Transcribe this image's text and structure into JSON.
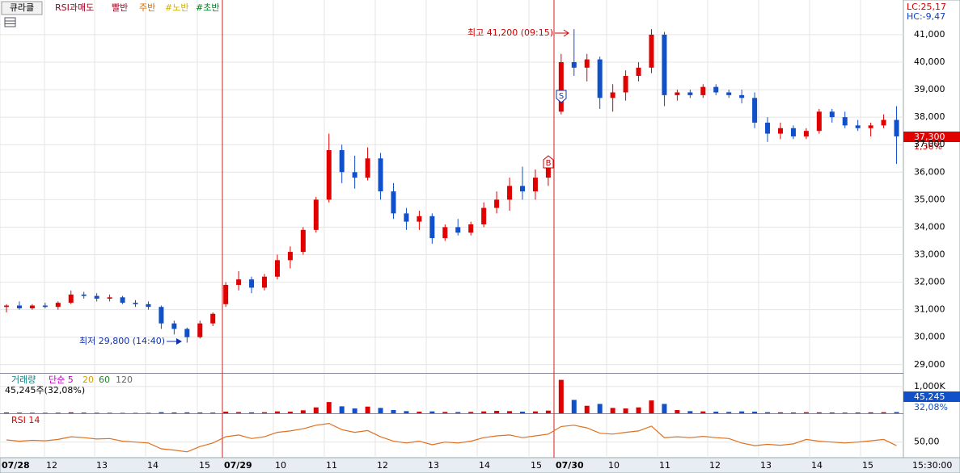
{
  "chart_data": {
    "type": "candlestick",
    "toolbar": {
      "stock": "큐라클",
      "items": [
        "RSI과매도",
        "빨반",
        "주반",
        "#노반",
        "#초반"
      ]
    },
    "indicators": {
      "lc": "LC:25,17",
      "hc": "HC:-9,47"
    },
    "last_price": {
      "value": 37300,
      "label": "37,300"
    },
    "change": "1,36%",
    "annotations": {
      "high": "최고 41,200 (09:15)",
      "low": "최저 29,800 (14:40)"
    },
    "signals": [
      "S",
      "B"
    ],
    "x_labels": [
      "07/28",
      "12",
      "13",
      "14",
      "15",
      "07/29",
      "10",
      "11",
      "12",
      "13",
      "14",
      "15",
      "07/30",
      "10",
      "11",
      "12",
      "13",
      "14",
      "15",
      "15:30:00"
    ],
    "ylim": [
      28700,
      42260
    ],
    "yticks": [
      {
        "value": 29000,
        "label": "29,000"
      },
      {
        "value": 30000,
        "label": "30,000"
      },
      {
        "value": 31000,
        "label": "31,000"
      },
      {
        "value": 32000,
        "label": "32,000"
      },
      {
        "value": 33000,
        "label": "33,000"
      },
      {
        "value": 34000,
        "label": "34,000"
      },
      {
        "value": 35000,
        "label": "35,000"
      },
      {
        "value": 36000,
        "label": "36,000"
      },
      {
        "value": 37000,
        "label": "37,000"
      },
      {
        "value": 38000,
        "label": "38,000"
      },
      {
        "value": 39000,
        "label": "39,000"
      },
      {
        "value": 40000,
        "label": "40,000"
      },
      {
        "value": 41000,
        "label": "41,000"
      }
    ],
    "up_color": "#e00000",
    "down_color": "#1050c8",
    "candles": [
      [
        31100,
        31200,
        30900,
        31150
      ],
      [
        31150,
        31300,
        31000,
        31050
      ],
      [
        31050,
        31200,
        31000,
        31150
      ],
      [
        31150,
        31250,
        31050,
        31100
      ],
      [
        31100,
        31300,
        31000,
        31250
      ],
      [
        31250,
        31700,
        31200,
        31550
      ],
      [
        31550,
        31650,
        31400,
        31500
      ],
      [
        31500,
        31600,
        31300,
        31400
      ],
      [
        31400,
        31550,
        31300,
        31450
      ],
      [
        31450,
        31500,
        31200,
        31250
      ],
      [
        31250,
        31350,
        31100,
        31200
      ],
      [
        31200,
        31300,
        31000,
        31100
      ],
      [
        31100,
        31150,
        30300,
        30500
      ],
      [
        30500,
        30600,
        30100,
        30300
      ],
      [
        30300,
        30350,
        29800,
        30000
      ],
      [
        30000,
        30600,
        29950,
        30500
      ],
      [
        30500,
        30900,
        30400,
        30850
      ],
      [
        31200,
        32000,
        31100,
        31900
      ],
      [
        31900,
        32400,
        31700,
        32100
      ],
      [
        32100,
        32200,
        31600,
        31800
      ],
      [
        31800,
        32300,
        31700,
        32200
      ],
      [
        32200,
        33000,
        32100,
        32800
      ],
      [
        32800,
        33300,
        32500,
        33100
      ],
      [
        33100,
        34000,
        33000,
        33900
      ],
      [
        33900,
        35100,
        33800,
        35000
      ],
      [
        35000,
        37400,
        34900,
        36800
      ],
      [
        36800,
        37000,
        35600,
        36000
      ],
      [
        36000,
        36600,
        35400,
        35800
      ],
      [
        35800,
        36900,
        35700,
        36500
      ],
      [
        36500,
        36700,
        35000,
        35300
      ],
      [
        35300,
        35600,
        34300,
        34500
      ],
      [
        34500,
        34700,
        33900,
        34200
      ],
      [
        34200,
        34600,
        33900,
        34400
      ],
      [
        34400,
        34500,
        33400,
        33600
      ],
      [
        33600,
        34100,
        33500,
        34000
      ],
      [
        34000,
        34300,
        33700,
        33800
      ],
      [
        33800,
        34200,
        33700,
        34100
      ],
      [
        34100,
        34900,
        34000,
        34700
      ],
      [
        34700,
        35300,
        34500,
        35000
      ],
      [
        35000,
        35800,
        34600,
        35500
      ],
      [
        35500,
        36200,
        35000,
        35300
      ],
      [
        35300,
        36100,
        35000,
        35800
      ],
      [
        35800,
        36600,
        35500,
        36400
      ],
      [
        38200,
        40300,
        38100,
        40000
      ],
      [
        40000,
        41200,
        39500,
        39800
      ],
      [
        39800,
        40300,
        39300,
        40100
      ],
      [
        40100,
        40200,
        38300,
        38700
      ],
      [
        38700,
        39200,
        38200,
        38900
      ],
      [
        38900,
        39700,
        38600,
        39500
      ],
      [
        39500,
        40000,
        39300,
        39800
      ],
      [
        39800,
        41200,
        39600,
        41000
      ],
      [
        41000,
        41100,
        38400,
        38800
      ],
      [
        38800,
        39000,
        38600,
        38900
      ],
      [
        38900,
        39000,
        38700,
        38800
      ],
      [
        38800,
        39200,
        38700,
        39100
      ],
      [
        39100,
        39200,
        38800,
        38900
      ],
      [
        38900,
        39000,
        38700,
        38800
      ],
      [
        38800,
        39000,
        38500,
        38700
      ],
      [
        38700,
        38900,
        37600,
        37800
      ],
      [
        37800,
        38000,
        37100,
        37400
      ],
      [
        37400,
        37800,
        37200,
        37600
      ],
      [
        37600,
        37700,
        37200,
        37300
      ],
      [
        37300,
        37600,
        37200,
        37500
      ],
      [
        37500,
        38300,
        37400,
        38200
      ],
      [
        38200,
        38300,
        37800,
        38000
      ],
      [
        38000,
        38200,
        37600,
        37700
      ],
      [
        37700,
        37900,
        37500,
        37600
      ],
      [
        37600,
        37800,
        37300,
        37700
      ],
      [
        37700,
        38100,
        37600,
        37900
      ],
      [
        37900,
        38400,
        36300,
        37300
      ]
    ],
    "volume": {
      "legend": [
        "거래량",
        "단순 5",
        "20",
        "60",
        "120"
      ],
      "current": "45,245주(32,08%)",
      "tag": "45,245",
      "tag_pct": "32,08%",
      "ylim": [
        0,
        1480000
      ],
      "yticks": [
        {
          "value": 1000000,
          "label": "1,000K"
        }
      ],
      "values": [
        30000,
        25000,
        20000,
        18000,
        22000,
        35000,
        25000,
        20000,
        18000,
        15000,
        15000,
        18000,
        40000,
        30000,
        35000,
        28000,
        25000,
        60000,
        45000,
        35000,
        40000,
        70000,
        60000,
        110000,
        220000,
        420000,
        260000,
        180000,
        250000,
        200000,
        120000,
        80000,
        60000,
        70000,
        50000,
        45000,
        50000,
        70000,
        90000,
        80000,
        60000,
        70000,
        100000,
        1250000,
        500000,
        280000,
        350000,
        200000,
        180000,
        220000,
        480000,
        350000,
        120000,
        80000,
        70000,
        60000,
        50000,
        70000,
        60000,
        40000,
        35000,
        30000,
        40000,
        35000,
        30000,
        25000,
        30000,
        35000,
        40000,
        45245
      ]
    },
    "rsi": {
      "label": "RSI 14",
      "color": "#e07020",
      "ylim": [
        15,
        113
      ],
      "yticks": [
        {
          "value": 50,
          "label": "50,00"
        }
      ],
      "values": [
        55,
        52,
        54,
        53,
        56,
        62,
        60,
        57,
        58,
        52,
        50,
        48,
        35,
        32,
        28,
        40,
        48,
        62,
        66,
        58,
        62,
        72,
        75,
        80,
        88,
        92,
        78,
        72,
        76,
        62,
        52,
        48,
        52,
        44,
        50,
        48,
        52,
        60,
        64,
        66,
        60,
        64,
        68,
        85,
        88,
        82,
        70,
        68,
        72,
        75,
        86,
        60,
        62,
        60,
        63,
        60,
        58,
        48,
        42,
        45,
        43,
        46,
        56,
        52,
        50,
        48,
        50,
        53,
        56,
        42
      ]
    }
  }
}
